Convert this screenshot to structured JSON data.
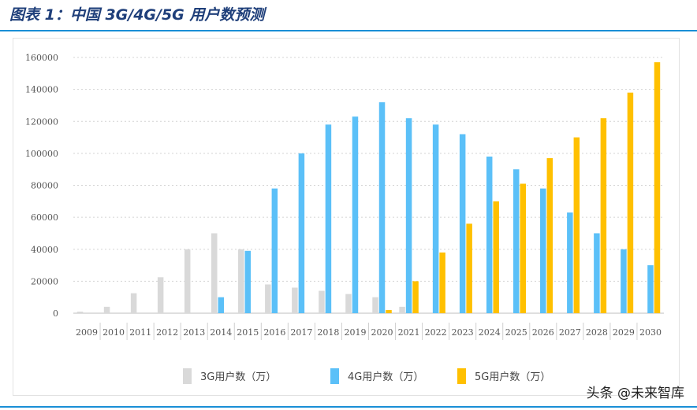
{
  "figure": {
    "title": "图表 1：中国 3G/4G/5G 用户数预测"
  },
  "watermark": "头条 @未来智库",
  "chart_data": {
    "type": "bar",
    "categories": [
      "2009",
      "2010",
      "2011",
      "2012",
      "2013",
      "2014",
      "2015",
      "2016",
      "2017",
      "2018",
      "2019",
      "2020",
      "2021",
      "2022",
      "2023",
      "2024",
      "2025",
      "2026",
      "2027",
      "2028",
      "2029",
      "2030"
    ],
    "series": [
      {
        "name": "3G用户数（万）",
        "color": "#d9d9d9",
        "values": [
          1000,
          4000,
          12500,
          22500,
          40000,
          50000,
          40000,
          18000,
          16000,
          14000,
          12000,
          10000,
          4000,
          0,
          0,
          0,
          0,
          0,
          0,
          0,
          0,
          0
        ]
      },
      {
        "name": "4G用户数（万）",
        "color": "#5bc0f8",
        "values": [
          0,
          0,
          0,
          0,
          0,
          10000,
          39000,
          78000,
          100000,
          118000,
          123000,
          132000,
          122000,
          118000,
          112000,
          98000,
          90000,
          78000,
          63000,
          50000,
          40000,
          30000
        ]
      },
      {
        "name": "5G用户数（万）",
        "color": "#ffc000",
        "values": [
          0,
          0,
          0,
          0,
          0,
          0,
          0,
          0,
          0,
          0,
          0,
          2000,
          20000,
          38000,
          56000,
          70000,
          81000,
          97000,
          110000,
          122000,
          138000,
          157000
        ]
      }
    ],
    "ylim": [
      0,
      160000
    ],
    "yticks": [
      "0",
      "20000",
      "40000",
      "60000",
      "80000",
      "100000",
      "120000",
      "140000",
      "160000"
    ],
    "ytick_values": [
      0,
      20000,
      40000,
      60000,
      80000,
      100000,
      120000,
      140000,
      160000
    ],
    "grid": true,
    "legend_position": "bottom"
  }
}
